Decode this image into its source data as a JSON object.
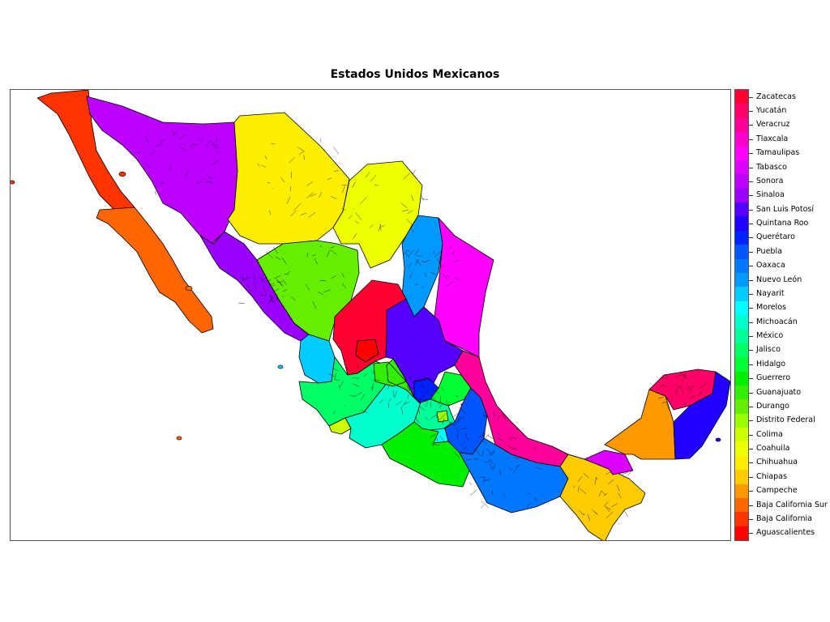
{
  "map": {
    "title": "Estados Unidos Mexicanos"
  },
  "legend": {
    "items": [
      {
        "label": "Zacatecas",
        "color": "#ff0033"
      },
      {
        "label": "Yucatán",
        "color": "#ff0066"
      },
      {
        "label": "Veracruz",
        "color": "#ff0099"
      },
      {
        "label": "Tlaxcala",
        "color": "#ff00cc"
      },
      {
        "label": "Tamaulipas",
        "color": "#ff00ff"
      },
      {
        "label": "Tabasco",
        "color": "#dd00ff"
      },
      {
        "label": "Sonora",
        "color": "#bb00ff"
      },
      {
        "label": "Sinaloa",
        "color": "#9900ff"
      },
      {
        "label": "San Luis Potosí",
        "color": "#5500ff"
      },
      {
        "label": "Quintana Roo",
        "color": "#2200ff"
      },
      {
        "label": "Querétaro",
        "color": "#0022ff"
      },
      {
        "label": "Puebla",
        "color": "#0055ff"
      },
      {
        "label": "Oaxaca",
        "color": "#0077ff"
      },
      {
        "label": "Nuevo León",
        "color": "#0099ff"
      },
      {
        "label": "Nayarit",
        "color": "#00ccff"
      },
      {
        "label": "Morelos",
        "color": "#00ffff"
      },
      {
        "label": "Michoacán",
        "color": "#00ffcc"
      },
      {
        "label": "México",
        "color": "#00ff99"
      },
      {
        "label": "Jalisco",
        "color": "#00ff66"
      },
      {
        "label": "Hidalgo",
        "color": "#00ff33"
      },
      {
        "label": "Guerrero",
        "color": "#00ee00"
      },
      {
        "label": "Guanajuato",
        "color": "#33ee00"
      },
      {
        "label": "Durango",
        "color": "#66ee00"
      },
      {
        "label": "Distrito Federal",
        "color": "#99ff00"
      },
      {
        "label": "Colima",
        "color": "#ccff00"
      },
      {
        "label": "Coahuila",
        "color": "#eeff00"
      },
      {
        "label": "Chihuahua",
        "color": "#ffee00"
      },
      {
        "label": "Chiapas",
        "color": "#ffcc00"
      },
      {
        "label": "Campeche",
        "color": "#ff9900"
      },
      {
        "label": "Baja California Sur",
        "color": "#ff6600"
      },
      {
        "label": "Baja California",
        "color": "#ff3300"
      },
      {
        "label": "Aguascalientes",
        "color": "#ff0000"
      }
    ]
  },
  "regions": [
    {
      "name": "Baja California",
      "color": "#ff3300"
    },
    {
      "name": "Baja California Sur",
      "color": "#ff6600"
    },
    {
      "name": "Sonora",
      "color": "#bb00ff"
    },
    {
      "name": "Chihuahua",
      "color": "#ffee00"
    },
    {
      "name": "Coahuila",
      "color": "#eeff00"
    },
    {
      "name": "Nuevo León",
      "color": "#0099ff"
    },
    {
      "name": "Tamaulipas",
      "color": "#ff00ff"
    },
    {
      "name": "Sinaloa",
      "color": "#9900ff"
    },
    {
      "name": "Durango",
      "color": "#66ee00"
    },
    {
      "name": "Zacatecas",
      "color": "#ff0033"
    },
    {
      "name": "San Luis Potosí",
      "color": "#5500ff"
    },
    {
      "name": "Nayarit",
      "color": "#00ccff"
    },
    {
      "name": "Aguascalientes",
      "color": "#ff0000"
    },
    {
      "name": "Jalisco",
      "color": "#00ff66"
    },
    {
      "name": "Colima",
      "color": "#ccff00"
    },
    {
      "name": "Michoacán",
      "color": "#00ffcc"
    },
    {
      "name": "Guanajuato",
      "color": "#33ee00"
    },
    {
      "name": "Querétaro",
      "color": "#0022ff"
    },
    {
      "name": "Hidalgo",
      "color": "#00ff33"
    },
    {
      "name": "México",
      "color": "#00ff99"
    },
    {
      "name": "Distrito Federal",
      "color": "#99ff00"
    },
    {
      "name": "Morelos",
      "color": "#00ffff"
    },
    {
      "name": "Tlaxcala",
      "color": "#ff00cc"
    },
    {
      "name": "Puebla",
      "color": "#0055ff"
    },
    {
      "name": "Veracruz",
      "color": "#ff0099"
    },
    {
      "name": "Guerrero",
      "color": "#00ee00"
    },
    {
      "name": "Oaxaca",
      "color": "#0077ff"
    },
    {
      "name": "Chiapas",
      "color": "#ffcc00"
    },
    {
      "name": "Tabasco",
      "color": "#dd00ff"
    },
    {
      "name": "Campeche",
      "color": "#ff9900"
    },
    {
      "name": "Yucatán",
      "color": "#ff0066"
    },
    {
      "name": "Quintana Roo",
      "color": "#2200ff"
    }
  ]
}
